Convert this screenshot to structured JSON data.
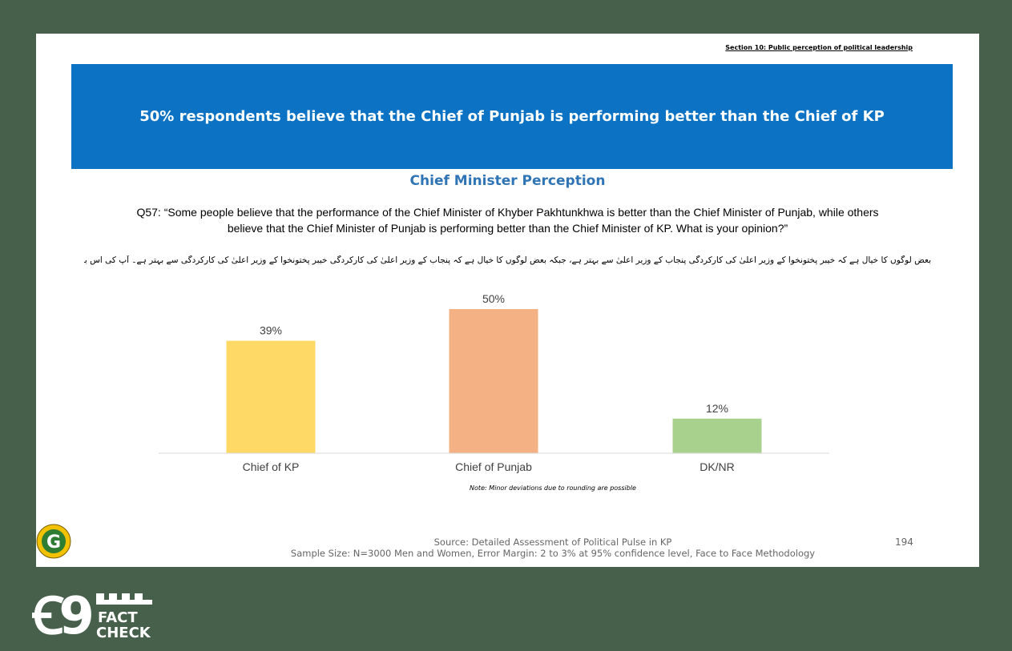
{
  "header": {
    "section": "Section 10: Public perception of political leadership"
  },
  "banner": {
    "headline": "50% respondents believe that the Chief of Punjab is performing better than the Chief of KP"
  },
  "question": {
    "line1": "Q57: “Some people believe that the performance of the Chief Minister of Khyber Pakhtunkhwa is better than the Chief Minister of Punjab, while others",
    "line2": "believe that the Chief Minister of Punjab is performing better than the Chief Minister of KP. What is your opinion?”",
    "urdu": "بعض لوگوں کا خیال ہے کہ خیبر پختونخوا کے وزیر اعلیٰ کی کارکردگی پنجاب کے وزیر اعلیٰ سے بہتر ہے، جبکہ بعض لوگوں کا خیال ہے کہ پنجاب کے وزیر اعلیٰ کی کارکردگی خیبر پختونخوا کے وزیر اعلیٰ کی کارکردگی سے بہتر ہے۔ آپ کی اس بارے میں کیا رائے ہے؟"
  },
  "chart_data": {
    "type": "bar",
    "title": "Chief Minister Perception",
    "categories": [
      "Chief of KP",
      "Chief of Punjab",
      "DK/NR"
    ],
    "values": [
      39,
      50,
      12
    ],
    "value_labels": [
      "39%",
      "50%",
      "12%"
    ],
    "colors": [
      "#ffd966",
      "#f4b183",
      "#a9d18e"
    ],
    "ylim": [
      0,
      55
    ],
    "grid": false,
    "legend": "none"
  },
  "note": "Note: Minor deviations due to rounding are possible",
  "footer": {
    "source": "Source: Detailed Assessment of Political Pulse in KP",
    "sample": "Sample Size: N=3000 Men and Women, Error Margin: 2 to 3% at 95% confidence level, Face to Face Methodology",
    "page_number": "194"
  },
  "logos": {
    "g_logo": {
      "icon": "g-logo-icon",
      "letter": "G",
      "colors": [
        "#f2c200",
        "#2e7d32"
      ]
    },
    "fact_check": {
      "icon": "fact-check-logo",
      "word1": "FACT",
      "word2": "CHECK",
      "numeral": "Ꞓ9"
    }
  }
}
